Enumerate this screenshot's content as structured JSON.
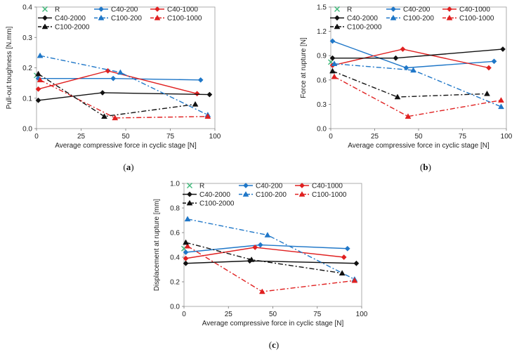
{
  "colors": {
    "R": "#3cb878",
    "C40-200": "#1f77c8",
    "C40-1000": "#e02020",
    "C40-2000": "#111111",
    "C100-200": "#1f77c8",
    "C100-1000": "#e02020",
    "C100-2000": "#111111"
  },
  "chart_data": [
    {
      "id": "a",
      "type": "line",
      "caption": "a",
      "xlabel": "Average compressive force in cyclic stage [N]",
      "ylabel": "Pull-out toughness [N.mm]",
      "xlim": [
        0,
        100
      ],
      "ylim": [
        0,
        0.4
      ],
      "xticks": [
        "0",
        "25",
        "50",
        "75",
        "100"
      ],
      "yticks": [
        "0.0",
        "0.1",
        "0.2",
        "0.3",
        "0.4"
      ],
      "series": [
        {
          "name": "R",
          "x": [
            0
          ],
          "y": [
            0.175
          ]
        },
        {
          "name": "C40-200",
          "x": [
            1,
            43,
            92
          ],
          "y": [
            0.165,
            0.165,
            0.16
          ]
        },
        {
          "name": "C40-1000",
          "x": [
            1,
            40,
            90
          ],
          "y": [
            0.13,
            0.19,
            0.115
          ]
        },
        {
          "name": "C40-2000",
          "x": [
            1,
            37,
            97
          ],
          "y": [
            0.093,
            0.118,
            0.112
          ]
        },
        {
          "name": "C100-200",
          "x": [
            2,
            47,
            96
          ],
          "y": [
            0.24,
            0.185,
            0.045
          ]
        },
        {
          "name": "C100-1000",
          "x": [
            2,
            44,
            96
          ],
          "y": [
            0.16,
            0.035,
            0.04
          ]
        },
        {
          "name": "C100-2000",
          "x": [
            1,
            38,
            89
          ],
          "y": [
            0.18,
            0.04,
            0.08
          ]
        }
      ]
    },
    {
      "id": "b",
      "type": "line",
      "caption": "b",
      "xlabel": "Average compressive force in cyclic stage [N]",
      "ylabel": "Force at rupture [N]",
      "xlim": [
        0,
        100
      ],
      "ylim": [
        0,
        1.5
      ],
      "xticks": [
        "0",
        "25",
        "50",
        "75",
        "100"
      ],
      "yticks": [
        "0.0",
        "0.3",
        "0.6",
        "0.9",
        "1.2",
        "1.5"
      ],
      "series": [
        {
          "name": "R",
          "x": [
            0
          ],
          "y": [
            0.82
          ]
        },
        {
          "name": "C40-200",
          "x": [
            1,
            43,
            93
          ],
          "y": [
            1.08,
            0.75,
            0.83
          ]
        },
        {
          "name": "C40-1000",
          "x": [
            1,
            41,
            90
          ],
          "y": [
            0.78,
            0.98,
            0.75
          ]
        },
        {
          "name": "C40-2000",
          "x": [
            1,
            37,
            98
          ],
          "y": [
            0.87,
            0.87,
            0.98
          ]
        },
        {
          "name": "C100-200",
          "x": [
            2,
            47,
            97
          ],
          "y": [
            0.8,
            0.72,
            0.27
          ]
        },
        {
          "name": "C100-1000",
          "x": [
            2,
            44,
            97
          ],
          "y": [
            0.64,
            0.15,
            0.35
          ]
        },
        {
          "name": "C100-2000",
          "x": [
            1,
            38,
            89
          ],
          "y": [
            0.71,
            0.39,
            0.43
          ]
        }
      ]
    },
    {
      "id": "c",
      "type": "line",
      "caption": "c",
      "xlabel": "Average compressive force in cyclic stage [N]",
      "ylabel": "Displacement at rupture [mm]",
      "xlim": [
        0,
        100
      ],
      "ylim": [
        0,
        1.0
      ],
      "xticks": [
        "0",
        "25",
        "50",
        "75",
        "100"
      ],
      "yticks": [
        "0.0",
        "0.2",
        "0.4",
        "0.6",
        "0.8",
        "1.0"
      ],
      "series": [
        {
          "name": "R",
          "x": [
            0
          ],
          "y": [
            0.47
          ]
        },
        {
          "name": "C40-200",
          "x": [
            1,
            43,
            92
          ],
          "y": [
            0.44,
            0.5,
            0.47
          ]
        },
        {
          "name": "C40-1000",
          "x": [
            1,
            40,
            90
          ],
          "y": [
            0.39,
            0.48,
            0.4
          ]
        },
        {
          "name": "C40-2000",
          "x": [
            1,
            37,
            97
          ],
          "y": [
            0.35,
            0.37,
            0.35
          ]
        },
        {
          "name": "C100-200",
          "x": [
            2,
            47,
            96
          ],
          "y": [
            0.71,
            0.58,
            0.22
          ]
        },
        {
          "name": "C100-1000",
          "x": [
            2,
            44,
            96
          ],
          "y": [
            0.49,
            0.12,
            0.21
          ]
        },
        {
          "name": "C100-2000",
          "x": [
            1,
            38,
            89
          ],
          "y": [
            0.52,
            0.38,
            0.27
          ]
        }
      ]
    }
  ]
}
